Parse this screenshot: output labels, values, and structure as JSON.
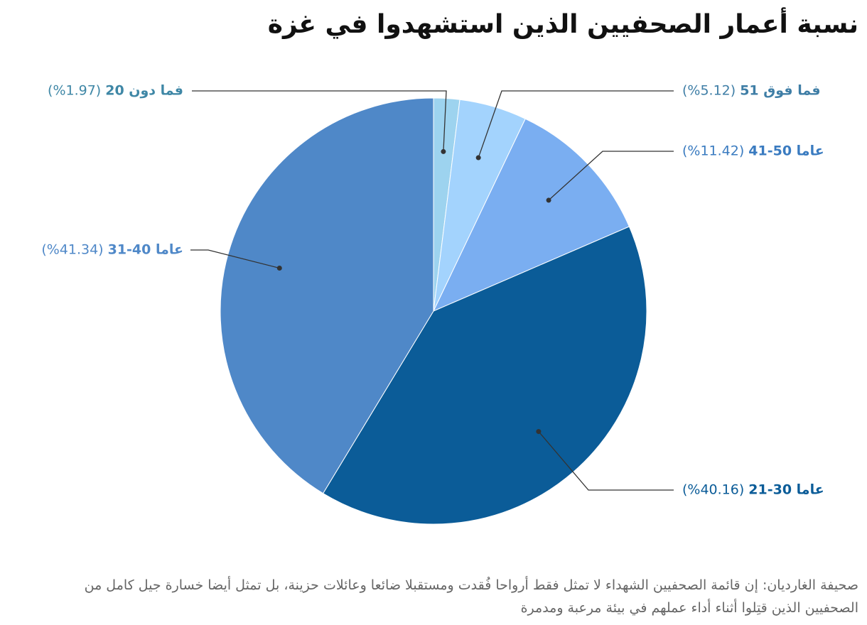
{
  "chart_data": {
    "type": "pie",
    "title": "نسبة أعمار الصحفيين الذين استشهدوا في غزة",
    "categories": [
      "20 فما دون",
      "51 فما فوق",
      "41-50 عاما",
      "21-30 عاما",
      "31-40 عاما"
    ],
    "values": [
      1.97,
      5.12,
      11.42,
      40.16,
      41.34
    ],
    "value_labels": [
      "(%1.97)",
      "(%5.12)",
      "(%11.42)",
      "(%40.16)",
      "(%41.34)"
    ],
    "colors": [
      "#9dd3ef",
      "#a3d3fd",
      "#7aaef1",
      "#0b5c98",
      "#4f88c8"
    ],
    "label_colors": [
      "#3f87a6",
      "#3f7ea6",
      "#3a7bc0",
      "#0b5c98",
      "#4f88c8"
    ],
    "note": "صحيفة الغارديان: إن قائمة الصحفيين الشهداء لا تمثل فقط أرواحا فُقدت ومستقبلا ضائعا وعائلات حزينة، بل تمثل أيضا خسارة جيل كامل من الصحفيين الذين قتِلوا أثناء أداء عملهم في بيئة مرعبة ومدمرة"
  }
}
